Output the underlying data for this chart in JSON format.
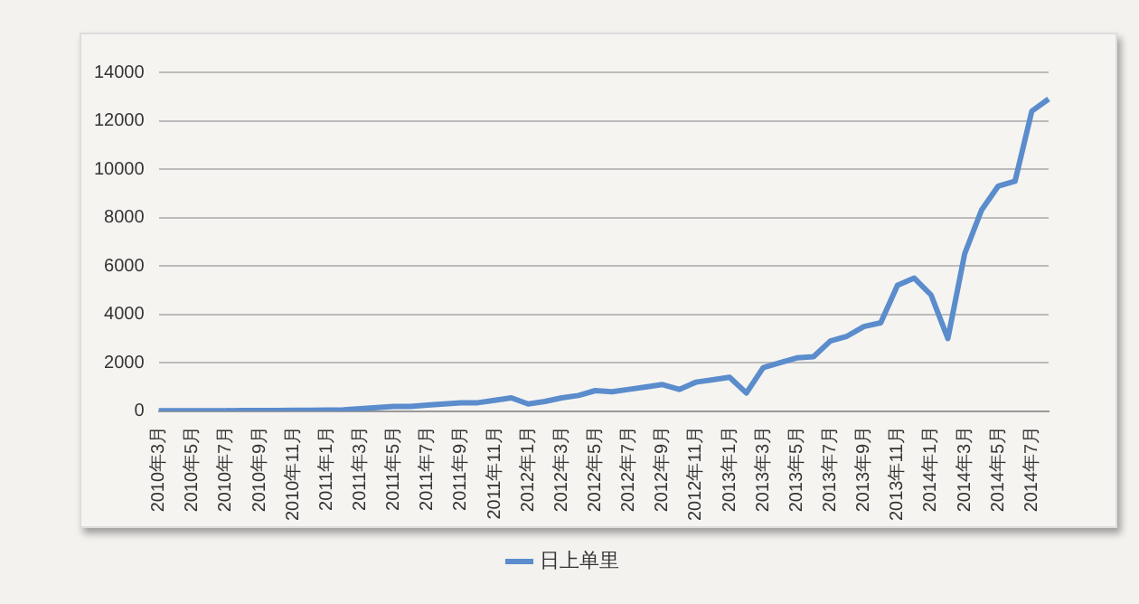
{
  "chart_data": {
    "type": "line",
    "categories": [
      "2010年3月",
      null,
      "2010年5月",
      null,
      "2010年7月",
      null,
      "2010年9月",
      null,
      "2010年11月",
      null,
      "2011年1月",
      null,
      "2011年3月",
      null,
      "2011年5月",
      null,
      "2011年7月",
      null,
      "2011年9月",
      null,
      "2011年11月",
      null,
      "2012年1月",
      null,
      "2012年3月",
      null,
      "2012年5月",
      null,
      "2012年7月",
      null,
      "2012年9月",
      null,
      "2012年11月",
      null,
      "2013年1月",
      null,
      "2013年3月",
      null,
      "2013年5月",
      null,
      "2013年7月",
      null,
      "2013年9月",
      null,
      "2013年11月",
      null,
      "2014年1月",
      null,
      "2014年3月",
      null,
      "2014年5月",
      null,
      "2014年7月",
      null
    ],
    "series": [
      {
        "name": "日上单里",
        "color": "#5b8ccc",
        "values": [
          20,
          20,
          20,
          20,
          20,
          30,
          30,
          30,
          40,
          40,
          50,
          60,
          100,
          150,
          200,
          200,
          250,
          300,
          350,
          350,
          450,
          550,
          300,
          400,
          550,
          650,
          850,
          800,
          900,
          1000,
          1100,
          900,
          1200,
          1300,
          1400,
          750,
          1800,
          2000,
          2200,
          2250,
          2900,
          3100,
          3500,
          3650,
          5200,
          5500,
          4800,
          3000,
          6500,
          8300,
          9300,
          9500,
          12400,
          12900
        ]
      }
    ],
    "ylim": [
      0,
      14000
    ],
    "yticks": [
      0,
      2000,
      4000,
      6000,
      8000,
      10000,
      12000,
      14000
    ],
    "grid": "y",
    "legend": "bottom",
    "marker": "none",
    "line_style": "solid"
  }
}
